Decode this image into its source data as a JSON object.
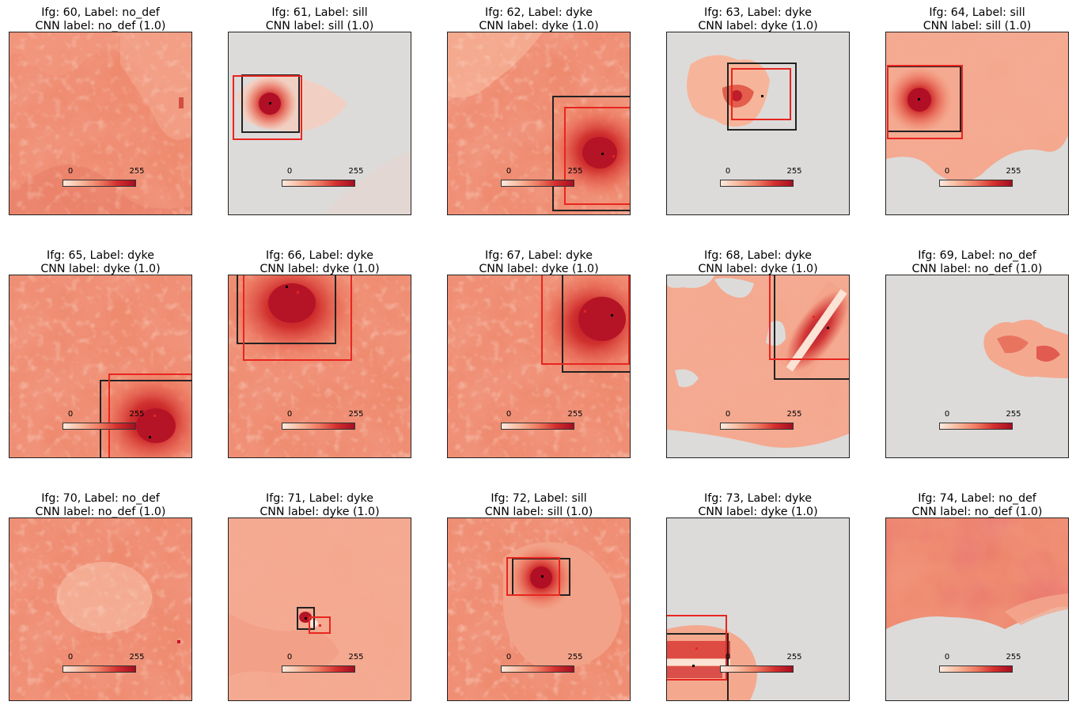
{
  "colorbar": {
    "min_label": "0",
    "max_label": "255",
    "cmap": [
      "#fdeadf",
      "#f8b89b",
      "#ef7b62",
      "#d32f2e",
      "#a50e22"
    ]
  },
  "colors": {
    "nodata": "#dcdbda",
    "base": "#ee8a6e",
    "label_box": "#222222",
    "cnn_box": "#e8251f"
  },
  "chart_data": [
    {
      "type": "heatmap",
      "ifg": 60,
      "label": "no_def",
      "title1": "Ifg: 60, Label: no_def",
      "title2": "CNN label: no_def (1.0)",
      "cnn_label": "no_def",
      "cnn_prob": 1.0
    },
    {
      "type": "heatmap",
      "ifg": 61,
      "label": "sill",
      "title1": "Ifg: 61, Label: sill",
      "title2": "CNN label: sill (1.0)",
      "cnn_label": "sill",
      "cnn_prob": 1.0
    },
    {
      "type": "heatmap",
      "ifg": 62,
      "label": "dyke",
      "title1": "Ifg: 62, Label: dyke",
      "title2": "CNN label: dyke (1.0)",
      "cnn_label": "dyke",
      "cnn_prob": 1.0
    },
    {
      "type": "heatmap",
      "ifg": 63,
      "label": "dyke",
      "title1": "Ifg: 63, Label: dyke",
      "title2": "CNN label: dyke (1.0)",
      "cnn_label": "dyke",
      "cnn_prob": 1.0
    },
    {
      "type": "heatmap",
      "ifg": 64,
      "label": "sill",
      "title1": "Ifg: 64, Label: sill",
      "title2": "CNN label: sill (1.0)",
      "cnn_label": "sill",
      "cnn_prob": 1.0
    },
    {
      "type": "heatmap",
      "ifg": 65,
      "label": "dyke",
      "title1": "Ifg: 65, Label: dyke",
      "title2": "CNN label: dyke (1.0)",
      "cnn_label": "dyke",
      "cnn_prob": 1.0
    },
    {
      "type": "heatmap",
      "ifg": 66,
      "label": "dyke",
      "title1": "Ifg: 66, Label: dyke",
      "title2": "CNN label: dyke (1.0)",
      "cnn_label": "dyke",
      "cnn_prob": 1.0
    },
    {
      "type": "heatmap",
      "ifg": 67,
      "label": "dyke",
      "title1": "Ifg: 67, Label: dyke",
      "title2": "CNN label: dyke (1.0)",
      "cnn_label": "dyke",
      "cnn_prob": 1.0
    },
    {
      "type": "heatmap",
      "ifg": 68,
      "label": "dyke",
      "title1": "Ifg: 68, Label: dyke",
      "title2": "CNN label: dyke (1.0)",
      "cnn_label": "dyke",
      "cnn_prob": 1.0
    },
    {
      "type": "heatmap",
      "ifg": 69,
      "label": "no_def",
      "title1": "Ifg: 69, Label: no_def",
      "title2": "CNN label: no_def (1.0)",
      "cnn_label": "no_def",
      "cnn_prob": 1.0
    },
    {
      "type": "heatmap",
      "ifg": 70,
      "label": "no_def",
      "title1": "Ifg: 70, Label: no_def",
      "title2": "CNN label: no_def (1.0)",
      "cnn_label": "no_def",
      "cnn_prob": 1.0
    },
    {
      "type": "heatmap",
      "ifg": 71,
      "label": "dyke",
      "title1": "Ifg: 71, Label: dyke",
      "title2": "CNN label: dyke (1.0)",
      "cnn_label": "dyke",
      "cnn_prob": 1.0
    },
    {
      "type": "heatmap",
      "ifg": 72,
      "label": "sill",
      "title1": "Ifg: 72, Label: sill",
      "title2": "CNN label: sill (1.0)",
      "cnn_label": "sill",
      "cnn_prob": 1.0
    },
    {
      "type": "heatmap",
      "ifg": 73,
      "label": "dyke",
      "title1": "Ifg: 73, Label: dyke",
      "title2": "CNN label: dyke (1.0)",
      "cnn_label": "dyke",
      "cnn_prob": 1.0
    },
    {
      "type": "heatmap",
      "ifg": 74,
      "label": "no_def",
      "title1": "Ifg: 74, Label: no_def",
      "title2": "CNN label: no_def (1.0)",
      "cnn_label": "no_def",
      "cnn_prob": 1.0
    }
  ]
}
